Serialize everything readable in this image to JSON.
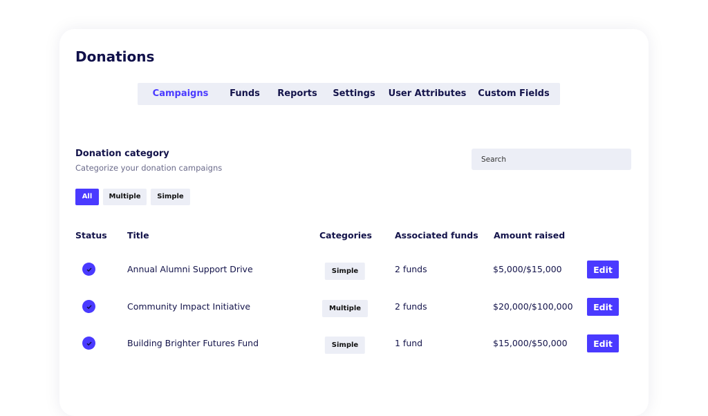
{
  "page_title": "Donations",
  "tabs": [
    {
      "label": "Campaigns",
      "active": true
    },
    {
      "label": "Funds"
    },
    {
      "label": "Reports"
    },
    {
      "label": "Settings"
    },
    {
      "label": "User Attributes"
    },
    {
      "label": "Custom Fields"
    }
  ],
  "section": {
    "title": "Donation category",
    "subtitle": "Categorize your donation campaigns"
  },
  "search": {
    "placeholder": "Search"
  },
  "filters": [
    {
      "label": "All",
      "active": true
    },
    {
      "label": "Multiple"
    },
    {
      "label": "Simple"
    }
  ],
  "table": {
    "headers": [
      "Status",
      "Title",
      "Categories",
      "Associated funds",
      "Amount raised"
    ],
    "rows": [
      {
        "status": "check-icon",
        "title": "Annual Alumni Support Drive",
        "category": "Simple",
        "funds": "2 funds",
        "amount": "$5,000/$15,000",
        "action": "Edit"
      },
      {
        "status": "check-icon",
        "title": "Community Impact Initiative",
        "category": "Multiple",
        "funds": "2 funds",
        "amount": "$20,000/$100,000",
        "action": "Edit"
      },
      {
        "status": "check-icon",
        "title": "Building Brighter Futures Fund",
        "category": "Simple",
        "funds": "1 fund",
        "amount": "$15,000/$50,000",
        "action": "Edit"
      }
    ]
  },
  "colors": {
    "accent": "#4a3aff",
    "text": "#13134a",
    "chip_bg": "#eceef6"
  }
}
